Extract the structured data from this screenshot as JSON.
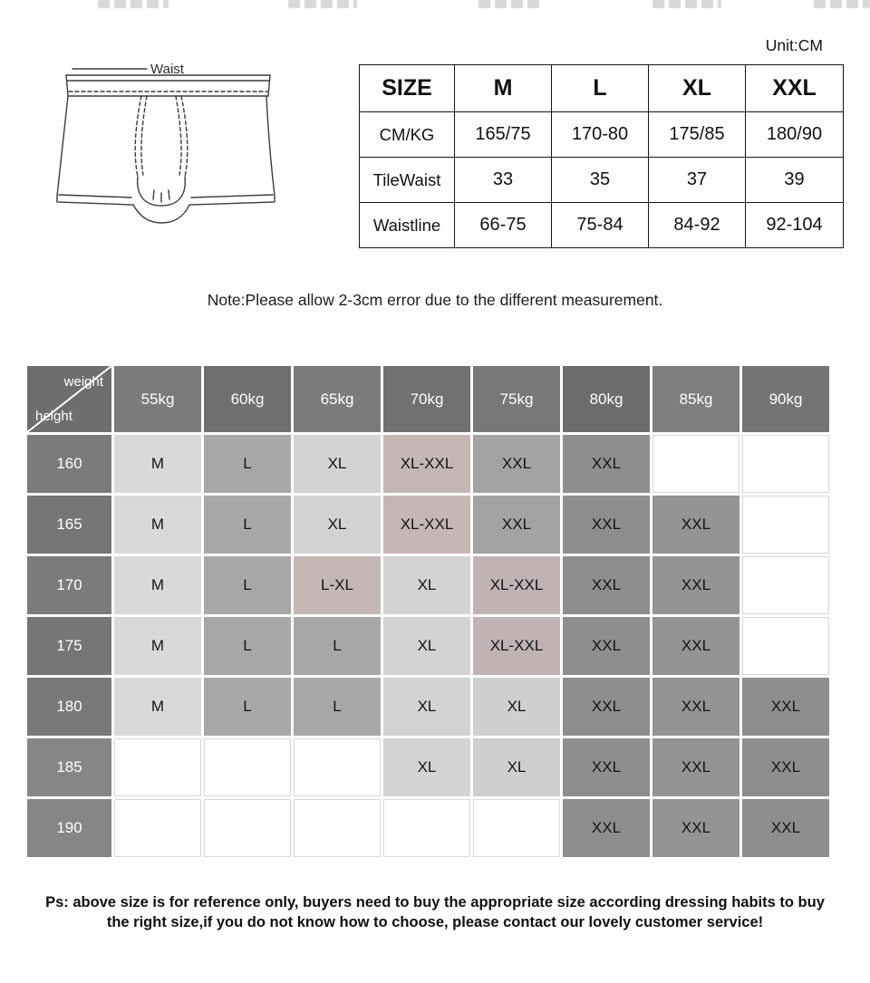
{
  "page": {
    "unit_label": "Unit:CM",
    "note": "Note:Please allow 2-3cm error due to the different measurement.",
    "footnote_line1": "Ps: above size is for reference only, buyers need to buy the appropriate size according dressing habits to buy",
    "footnote_line2": "the right size,if you do not know how to choose, please contact our lovely customer service!"
  },
  "diagram": {
    "waist_label": "Waist"
  },
  "size_table": {
    "header": [
      "SIZE",
      "M",
      "L",
      "XL",
      "XXL"
    ],
    "rows": [
      {
        "label": "CM/KG",
        "values": [
          "165/75",
          "170-80",
          "175/85",
          "180/90"
        ]
      },
      {
        "label": "TileWaist",
        "values": [
          "33",
          "35",
          "37",
          "39"
        ]
      },
      {
        "label": "Waistline",
        "values": [
          "66-75",
          "75-84",
          "84-92",
          "92-104"
        ]
      }
    ]
  },
  "matrix": {
    "corner": {
      "top_label": "weight",
      "bottom_label": "height",
      "bg": "#6e6e6e"
    },
    "weights": [
      {
        "label": "55kg",
        "bg": "#7b7b7b"
      },
      {
        "label": "60kg",
        "bg": "#6f6f6f"
      },
      {
        "label": "65kg",
        "bg": "#7b7b7b"
      },
      {
        "label": "70kg",
        "bg": "#717171"
      },
      {
        "label": "75kg",
        "bg": "#787878"
      },
      {
        "label": "80kg",
        "bg": "#6c6c6c"
      },
      {
        "label": "85kg",
        "bg": "#7e7e7e"
      },
      {
        "label": "90kg",
        "bg": "#747474"
      }
    ],
    "rows": [
      {
        "height": "160",
        "height_bg": "#7b7b7b",
        "cells": [
          {
            "label": "M",
            "bg": "#d9d9d9"
          },
          {
            "label": "L",
            "bg": "#a8a8a8"
          },
          {
            "label": "XL",
            "bg": "#d3d3d3"
          },
          {
            "label": "XL-XXL",
            "bg": "#c6b7b7"
          },
          {
            "label": "XXL",
            "bg": "#a3a3a3"
          },
          {
            "label": "XXL",
            "bg": "#8e8e8e"
          },
          {
            "label": "",
            "bg": ""
          },
          {
            "label": "",
            "bg": ""
          }
        ]
      },
      {
        "height": "165",
        "height_bg": "#767676",
        "cells": [
          {
            "label": "M",
            "bg": "#d9d9d9"
          },
          {
            "label": "L",
            "bg": "#a8a8a8"
          },
          {
            "label": "XL",
            "bg": "#d3d3d3"
          },
          {
            "label": "XL-XXL",
            "bg": "#c6b7b7"
          },
          {
            "label": "XXL",
            "bg": "#a3a3a3"
          },
          {
            "label": "XXL",
            "bg": "#8e8e8e"
          },
          {
            "label": "XXL",
            "bg": "#949494"
          },
          {
            "label": "",
            "bg": ""
          }
        ]
      },
      {
        "height": "170",
        "height_bg": "#7b7b7b",
        "cells": [
          {
            "label": "M",
            "bg": "#d9d9d9"
          },
          {
            "label": "L",
            "bg": "#a8a8a8"
          },
          {
            "label": "L-XL",
            "bg": "#c6b7b7"
          },
          {
            "label": "XL",
            "bg": "#d3d3d3"
          },
          {
            "label": "XL-XXL",
            "bg": "#c1b3b3"
          },
          {
            "label": "XXL",
            "bg": "#8e8e8e"
          },
          {
            "label": "XXL",
            "bg": "#949494"
          },
          {
            "label": "",
            "bg": ""
          }
        ]
      },
      {
        "height": "175",
        "height_bg": "#767676",
        "cells": [
          {
            "label": "M",
            "bg": "#d9d9d9"
          },
          {
            "label": "L",
            "bg": "#a8a8a8"
          },
          {
            "label": "L",
            "bg": "#a8a8a8"
          },
          {
            "label": "XL",
            "bg": "#d3d3d3"
          },
          {
            "label": "XL-XXL",
            "bg": "#c1b3b3"
          },
          {
            "label": "XXL",
            "bg": "#8e8e8e"
          },
          {
            "label": "XXL",
            "bg": "#949494"
          },
          {
            "label": "",
            "bg": ""
          }
        ]
      },
      {
        "height": "180",
        "height_bg": "#797979",
        "cells": [
          {
            "label": "M",
            "bg": "#d9d9d9"
          },
          {
            "label": "L",
            "bg": "#a8a8a8"
          },
          {
            "label": "L",
            "bg": "#a8a8a8"
          },
          {
            "label": "XL",
            "bg": "#d3d3d3"
          },
          {
            "label": "XL",
            "bg": "#cfcfcf"
          },
          {
            "label": "XXL",
            "bg": "#8e8e8e"
          },
          {
            "label": "XXL",
            "bg": "#949494"
          },
          {
            "label": "XXL",
            "bg": "#8e8e8e"
          }
        ]
      },
      {
        "height": "185",
        "height_bg": "#868686",
        "cells": [
          {
            "label": "",
            "bg": ""
          },
          {
            "label": "",
            "bg": ""
          },
          {
            "label": "",
            "bg": ""
          },
          {
            "label": "XL",
            "bg": "#d3d3d3"
          },
          {
            "label": "XL",
            "bg": "#cfcfcf"
          },
          {
            "label": "XXL",
            "bg": "#8e8e8e"
          },
          {
            "label": "XXL",
            "bg": "#949494"
          },
          {
            "label": "XXL",
            "bg": "#8e8e8e"
          }
        ]
      },
      {
        "height": "190",
        "height_bg": "#868686",
        "cells": [
          {
            "label": "",
            "bg": ""
          },
          {
            "label": "",
            "bg": ""
          },
          {
            "label": "",
            "bg": ""
          },
          {
            "label": "",
            "bg": ""
          },
          {
            "label": "",
            "bg": ""
          },
          {
            "label": "XXL",
            "bg": "#8e8e8e"
          },
          {
            "label": "XXL",
            "bg": "#949494"
          },
          {
            "label": "XXL",
            "bg": "#8e8e8e"
          }
        ]
      }
    ]
  }
}
